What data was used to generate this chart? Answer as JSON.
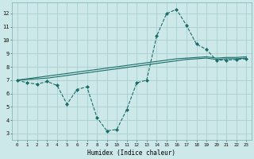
{
  "xlabel": "Humidex (Indice chaleur)",
  "xlim": [
    -0.5,
    23.5
  ],
  "ylim": [
    2.5,
    12.8
  ],
  "yticks": [
    3,
    4,
    5,
    6,
    7,
    8,
    9,
    10,
    11,
    12
  ],
  "xticks": [
    0,
    1,
    2,
    3,
    4,
    5,
    6,
    7,
    8,
    9,
    10,
    11,
    12,
    13,
    14,
    15,
    16,
    17,
    18,
    19,
    20,
    21,
    22,
    23
  ],
  "background_color": "#cde8e8",
  "grid_color": "#aacfcf",
  "line_color": "#1a6e6a",
  "line1_x": [
    0,
    1,
    2,
    3,
    4,
    5,
    6,
    7,
    8,
    9,
    10,
    11,
    12,
    13,
    14,
    15,
    16,
    17,
    18,
    19,
    20,
    21,
    22,
    23
  ],
  "line1_y": [
    7.0,
    6.8,
    6.7,
    6.9,
    6.6,
    5.2,
    6.3,
    6.5,
    4.2,
    3.2,
    3.3,
    4.8,
    6.8,
    7.0,
    10.3,
    12.0,
    12.3,
    11.1,
    9.7,
    9.3,
    8.5,
    8.5,
    8.55,
    8.6
  ],
  "line2_x": [
    0,
    1,
    2,
    3,
    4,
    5,
    6,
    7,
    8,
    9,
    10,
    11,
    12,
    13,
    14,
    15,
    16,
    17,
    18,
    19,
    20,
    21,
    22,
    23
  ],
  "line2_y": [
    7.0,
    7.05,
    7.1,
    7.15,
    7.25,
    7.35,
    7.45,
    7.55,
    7.65,
    7.75,
    7.85,
    7.95,
    8.05,
    8.15,
    8.25,
    8.35,
    8.45,
    8.55,
    8.6,
    8.65,
    8.55,
    8.6,
    8.6,
    8.65
  ],
  "line3_x": [
    0,
    1,
    2,
    3,
    4,
    5,
    6,
    7,
    8,
    9,
    10,
    11,
    12,
    13,
    14,
    15,
    16,
    17,
    18,
    19,
    20,
    21,
    22,
    23
  ],
  "line3_y": [
    7.0,
    7.1,
    7.2,
    7.3,
    7.4,
    7.5,
    7.6,
    7.7,
    7.8,
    7.9,
    8.0,
    8.1,
    8.2,
    8.3,
    8.4,
    8.5,
    8.6,
    8.65,
    8.7,
    8.75,
    8.65,
    8.7,
    8.7,
    8.75
  ]
}
